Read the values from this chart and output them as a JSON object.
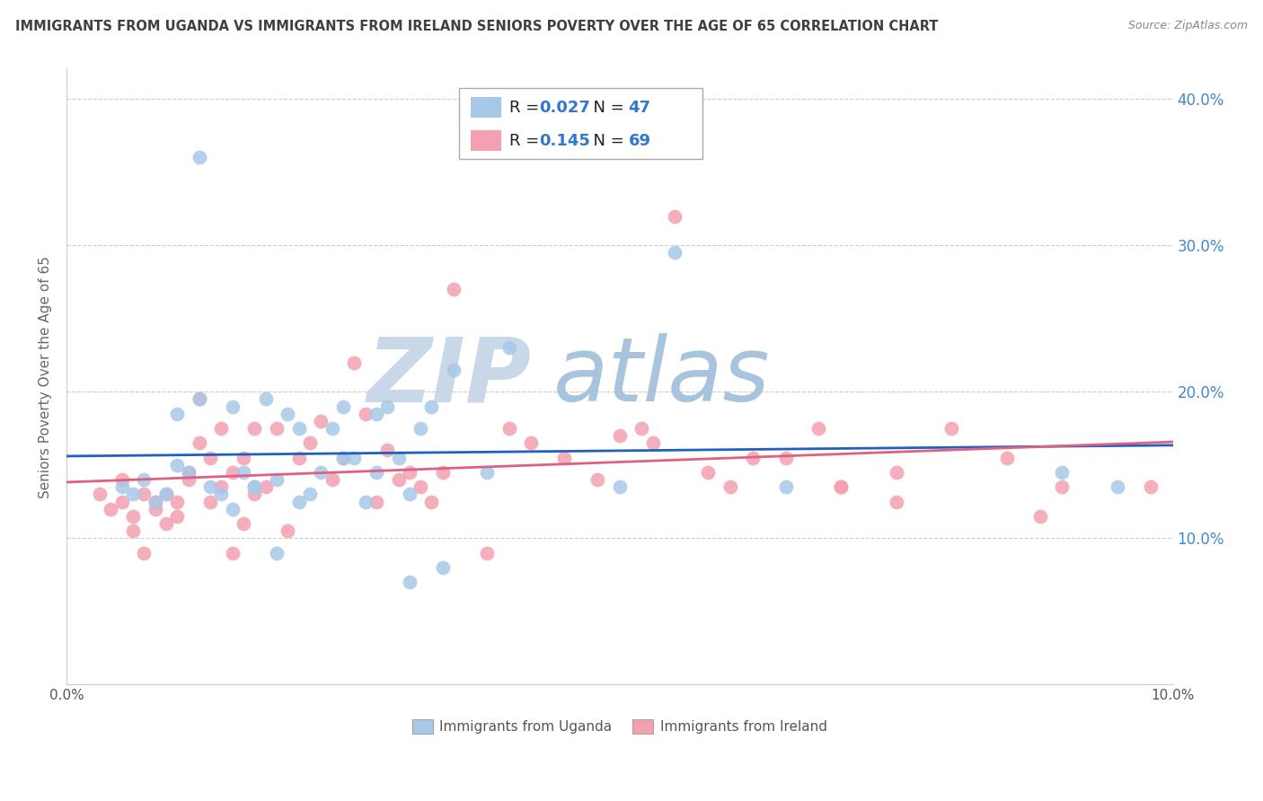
{
  "title": "IMMIGRANTS FROM UGANDA VS IMMIGRANTS FROM IRELAND SENIORS POVERTY OVER THE AGE OF 65 CORRELATION CHART",
  "source": "Source: ZipAtlas.com",
  "ylabel": "Seniors Poverty Over the Age of 65",
  "xlabel_uganda": "Immigrants from Uganda",
  "xlabel_ireland": "Immigrants from Ireland",
  "xlim": [
    0.0,
    0.1
  ],
  "ylim": [
    0.0,
    0.42
  ],
  "yticks": [
    0.0,
    0.1,
    0.2,
    0.3,
    0.4
  ],
  "ytick_labels": [
    "",
    "10.0%",
    "20.0%",
    "30.0%",
    "40.0%"
  ],
  "xticks": [
    0.0,
    0.02,
    0.04,
    0.06,
    0.08,
    0.1
  ],
  "xtick_labels": [
    "0.0%",
    "",
    "",
    "",
    "",
    "10.0%"
  ],
  "uganda_R": 0.027,
  "uganda_N": 47,
  "ireland_R": 0.145,
  "ireland_N": 69,
  "uganda_color": "#a8c8e8",
  "ireland_color": "#f4a0b0",
  "uganda_line_color": "#2060c0",
  "ireland_line_color": "#e06080",
  "watermark_zip_color": "#c8d8e8",
  "watermark_atlas_color": "#a0b8d0",
  "background_color": "#ffffff",
  "grid_color": "#cccccc",
  "title_color": "#404040",
  "uganda_x": [
    0.005,
    0.006,
    0.007,
    0.008,
    0.009,
    0.01,
    0.011,
    0.012,
    0.013,
    0.014,
    0.015,
    0.016,
    0.017,
    0.018,
    0.019,
    0.02,
    0.021,
    0.022,
    0.024,
    0.025,
    0.026,
    0.028,
    0.029,
    0.03,
    0.031,
    0.032,
    0.033,
    0.035,
    0.038,
    0.04,
    0.015,
    0.017,
    0.019,
    0.021,
    0.023,
    0.025,
    0.027,
    0.028,
    0.031,
    0.034,
    0.05,
    0.055,
    0.065,
    0.09,
    0.095,
    0.01,
    0.012
  ],
  "uganda_y": [
    0.135,
    0.13,
    0.14,
    0.125,
    0.13,
    0.15,
    0.145,
    0.36,
    0.135,
    0.13,
    0.19,
    0.145,
    0.135,
    0.195,
    0.14,
    0.185,
    0.175,
    0.13,
    0.175,
    0.19,
    0.155,
    0.185,
    0.19,
    0.155,
    0.13,
    0.175,
    0.19,
    0.215,
    0.145,
    0.23,
    0.12,
    0.135,
    0.09,
    0.125,
    0.145,
    0.155,
    0.125,
    0.145,
    0.07,
    0.08,
    0.135,
    0.295,
    0.135,
    0.145,
    0.135,
    0.185,
    0.195
  ],
  "ireland_x": [
    0.003,
    0.004,
    0.005,
    0.005,
    0.006,
    0.006,
    0.007,
    0.007,
    0.008,
    0.008,
    0.009,
    0.009,
    0.01,
    0.01,
    0.011,
    0.011,
    0.012,
    0.012,
    0.013,
    0.013,
    0.014,
    0.014,
    0.015,
    0.015,
    0.016,
    0.016,
    0.017,
    0.017,
    0.018,
    0.019,
    0.02,
    0.021,
    0.022,
    0.023,
    0.024,
    0.025,
    0.026,
    0.027,
    0.028,
    0.029,
    0.03,
    0.031,
    0.032,
    0.033,
    0.034,
    0.035,
    0.038,
    0.04,
    0.042,
    0.045,
    0.048,
    0.05,
    0.053,
    0.055,
    0.058,
    0.065,
    0.07,
    0.075,
    0.08,
    0.085,
    0.088,
    0.09,
    0.052,
    0.06,
    0.062,
    0.068,
    0.07,
    0.075,
    0.098
  ],
  "ireland_y": [
    0.13,
    0.12,
    0.14,
    0.125,
    0.115,
    0.105,
    0.13,
    0.09,
    0.125,
    0.12,
    0.11,
    0.13,
    0.125,
    0.115,
    0.14,
    0.145,
    0.165,
    0.195,
    0.125,
    0.155,
    0.135,
    0.175,
    0.145,
    0.09,
    0.11,
    0.155,
    0.13,
    0.175,
    0.135,
    0.175,
    0.105,
    0.155,
    0.165,
    0.18,
    0.14,
    0.155,
    0.22,
    0.185,
    0.125,
    0.16,
    0.14,
    0.145,
    0.135,
    0.125,
    0.145,
    0.27,
    0.09,
    0.175,
    0.165,
    0.155,
    0.14,
    0.17,
    0.165,
    0.32,
    0.145,
    0.155,
    0.135,
    0.145,
    0.175,
    0.155,
    0.115,
    0.135,
    0.175,
    0.135,
    0.155,
    0.175,
    0.135,
    0.125,
    0.135
  ]
}
